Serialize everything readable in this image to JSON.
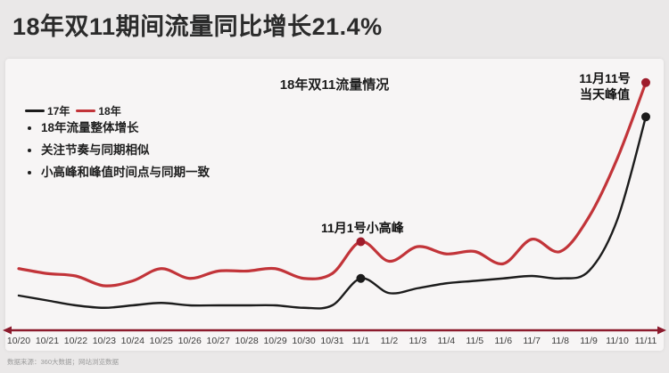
{
  "page": {
    "title": "18年双11期间流量同比增长21.4%",
    "source_note": "数据来源：360大数据；网站浏览数据"
  },
  "chart": {
    "title": "18年双11流量情况",
    "legend": [
      {
        "label": "17年",
        "color": "#1c1c1c"
      },
      {
        "label": "18年",
        "color": "#c23439"
      }
    ],
    "bullets": [
      "18年流量整体增长",
      "关注节奏与同期相似",
      "小高峰和峰值时间点与同期一致"
    ],
    "annotations": [
      {
        "text": "11月1号小高峰"
      },
      {
        "lines": [
          "11月11号",
          "当天峰值"
        ]
      }
    ]
  },
  "chart_data": {
    "type": "line",
    "title": "18年双11流量情况",
    "categories": [
      "10/20",
      "10/21",
      "10/22",
      "10/23",
      "10/24",
      "10/25",
      "10/26",
      "10/27",
      "10/28",
      "10/29",
      "10/30",
      "10/31",
      "11/1",
      "11/2",
      "11/3",
      "11/4",
      "11/5",
      "11/6",
      "11/7",
      "11/8",
      "11/9",
      "11/10",
      "11/11"
    ],
    "series": [
      {
        "name": "17年",
        "color": "#1c1c1c",
        "marker_color": "#1c1c1c",
        "stroke_width": 2.4,
        "values": [
          12,
          10,
          8,
          7,
          8,
          9,
          8,
          8,
          8,
          8,
          7,
          8,
          19,
          13,
          15,
          17,
          18,
          19,
          20,
          19,
          22,
          43,
          85
        ]
      },
      {
        "name": "18年",
        "color": "#c23439",
        "marker_color": "#9e1c2b",
        "stroke_width": 3.2,
        "values": [
          23,
          21,
          20,
          16,
          18,
          23,
          19,
          22,
          22,
          23,
          19,
          21,
          34,
          26,
          32,
          29,
          30,
          25,
          35,
          30,
          44,
          68,
          99
        ]
      }
    ],
    "marked_points": [
      {
        "category": "11/1",
        "label": "11月1号小高峰"
      },
      {
        "category": "11/11",
        "label": "11月11号当天峰值"
      }
    ],
    "ylim": [
      0,
      100
    ],
    "y_axis_visible": false,
    "grid": false,
    "legend_position": "top-left",
    "xlabel": "",
    "ylabel": ""
  },
  "colors": {
    "page_bg": "#eae8e8",
    "card_bg": "#f7f5f5",
    "axis": "#8c1b2d",
    "title_text": "#2b2b2b",
    "footer_text": "#9b9b9b"
  }
}
